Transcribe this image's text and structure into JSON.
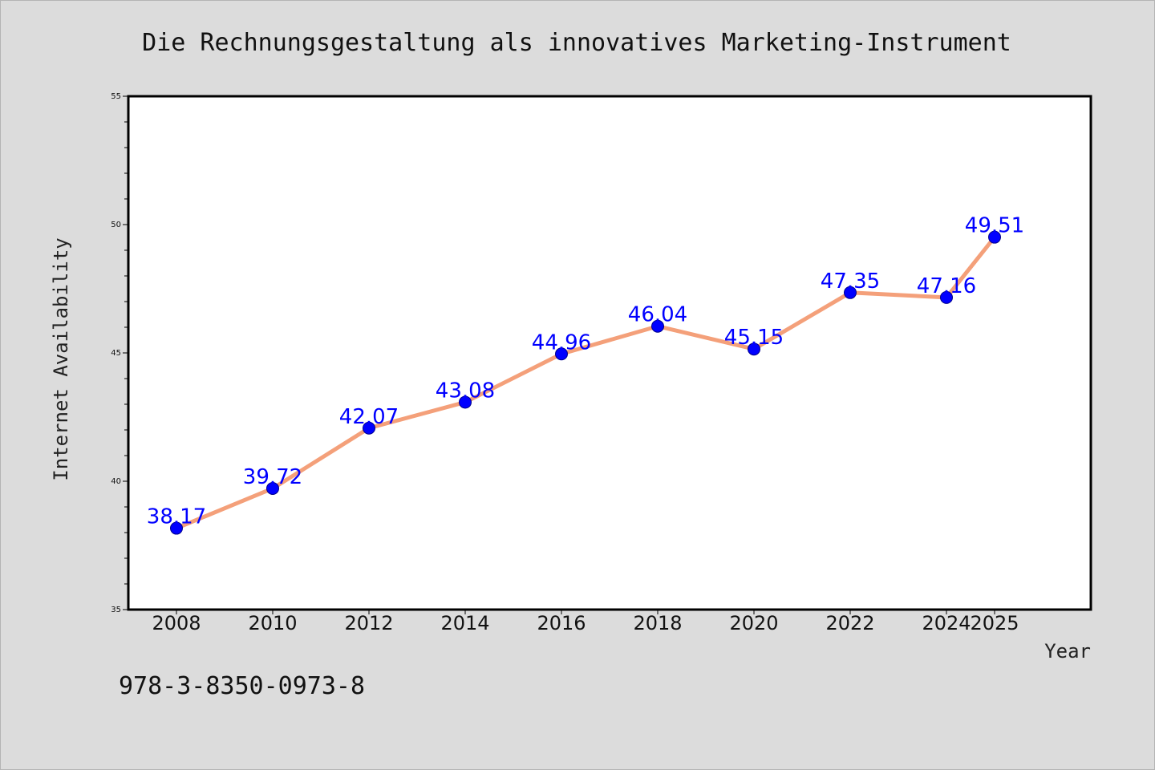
{
  "chart_data": {
    "type": "line",
    "title": "Die Rechnungsgestaltung als innovatives Marketing-Instrument",
    "xlabel": "Year",
    "ylabel": "Internet Availability",
    "x": [
      2008,
      2010,
      2012,
      2014,
      2016,
      2018,
      2020,
      2022,
      2024,
      2025
    ],
    "x_tick_labels": [
      "2008",
      "2010",
      "2012",
      "2014",
      "2016",
      "2018",
      "2020",
      "2022",
      "2024",
      "2025"
    ],
    "series": [
      {
        "values": [
          38.17,
          39.72,
          42.07,
          43.08,
          44.96,
          46.04,
          45.15,
          47.35,
          47.16,
          49.51
        ],
        "line_color": "#f4a07a",
        "marker_color": "#0000ff"
      }
    ],
    "data_labels": [
      "38.17",
      "39.72",
      "42.07",
      "43.08",
      "44.96",
      "46.04",
      "45.15",
      "47.35",
      "47.16",
      "49.51"
    ],
    "ylim": [
      35,
      55
    ],
    "y_tick_values": [
      35,
      40,
      45,
      50,
      55
    ],
    "y_tick_labels": [
      "35",
      "40",
      "45",
      "50",
      "55"
    ],
    "grid": false,
    "plot_background": "#ffffff",
    "figure_background": "#dcdcdc"
  },
  "footer_text": "978-3-8350-0973-8"
}
